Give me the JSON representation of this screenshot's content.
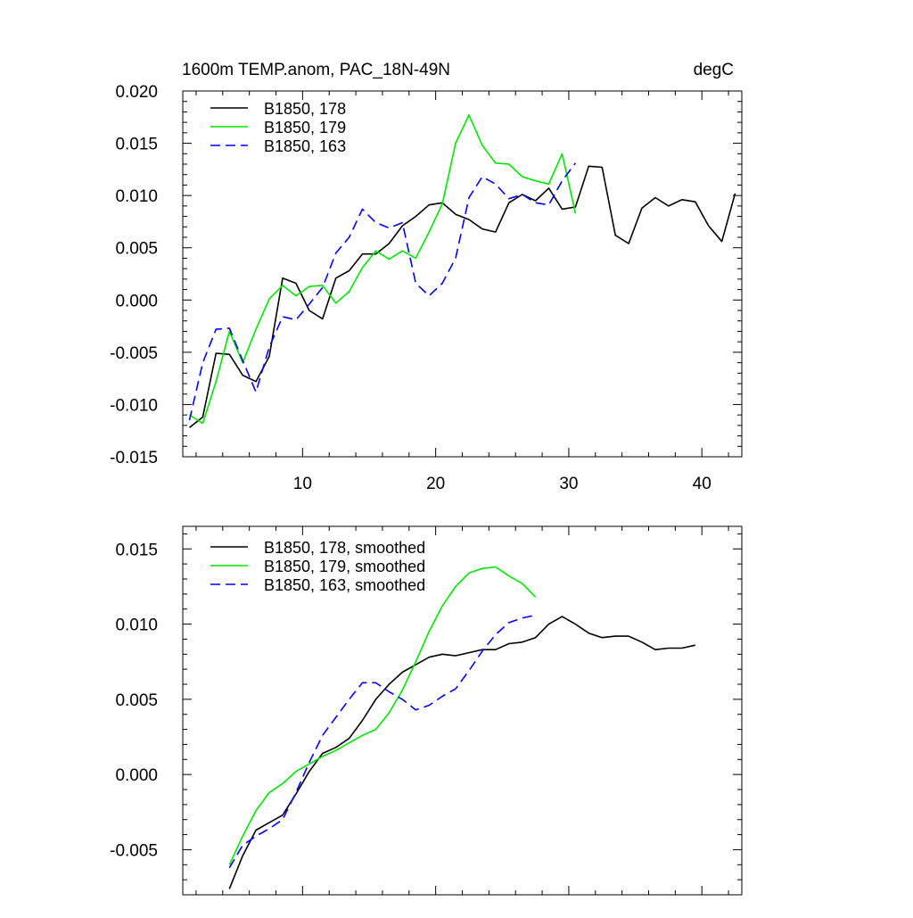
{
  "chart_data": [
    {
      "type": "line",
      "title": "1600m TEMP.anom, PAC_18N-49N",
      "units": "degC",
      "xlabel": "",
      "ylabel": "",
      "xlim": [
        1,
        43
      ],
      "ylim": [
        -0.015,
        0.02
      ],
      "yticks": [
        -0.015,
        -0.01,
        -0.005,
        0.0,
        0.005,
        0.01,
        0.015,
        0.02
      ],
      "ytick_labels": [
        "-0.015",
        "-0.010",
        "-0.005",
        "0.000",
        "0.005",
        "0.010",
        "0.015",
        "0.020"
      ],
      "xticks": [
        10,
        20,
        30,
        40
      ],
      "xtick_labels": [
        "10",
        "20",
        "30",
        "40"
      ],
      "legend_position": "top-left",
      "series": [
        {
          "name": "B1850, 178",
          "color": "#000000",
          "dash": "solid",
          "x": [
            1.5,
            2.5,
            3.5,
            4.5,
            5.5,
            6.5,
            7.5,
            8.5,
            9.5,
            10.5,
            11.5,
            12.5,
            13.5,
            14.5,
            15.5,
            16.5,
            17.5,
            18.5,
            19.5,
            20.5,
            21.5,
            22.5,
            23.5,
            24.5,
            25.5,
            26.5,
            27.5,
            28.5,
            29.5,
            30.5,
            31.5,
            32.5,
            33.5,
            34.5,
            35.5,
            36.5,
            37.5,
            38.5,
            39.5,
            40.5,
            41.5,
            42.5
          ],
          "y": [
            -0.0122,
            -0.0112,
            -0.0051,
            -0.0052,
            -0.0072,
            -0.0078,
            -0.0054,
            0.0021,
            0.0016,
            -0.001,
            -0.0018,
            0.0021,
            0.0028,
            0.0044,
            0.0044,
            0.0054,
            0.0071,
            0.008,
            0.0091,
            0.0093,
            0.0082,
            0.0077,
            0.0068,
            0.0065,
            0.0093,
            0.0101,
            0.0095,
            0.0107,
            0.0087,
            0.0089,
            0.0128,
            0.0127,
            0.0062,
            0.0054,
            0.0088,
            0.0098,
            0.009,
            0.0096,
            0.0094,
            0.0071,
            0.0056,
            0.0102
          ]
        },
        {
          "name": "B1850, 179",
          "color": "#00e600",
          "dash": "solid",
          "x": [
            1.5,
            2.5,
            3.5,
            4.5,
            5.5,
            6.5,
            7.5,
            8.5,
            9.5,
            10.5,
            11.5,
            12.5,
            13.5,
            14.5,
            15.5,
            16.5,
            17.5,
            18.5,
            19.5,
            20.5,
            21.5,
            22.5,
            23.5,
            24.5,
            25.5,
            26.5,
            27.5,
            28.5,
            29.5,
            30.5
          ],
          "y": [
            -0.011,
            -0.0118,
            -0.0078,
            -0.003,
            -0.006,
            -0.0028,
            0.0001,
            0.0014,
            0.0004,
            0.0013,
            0.0014,
            -0.0003,
            0.0008,
            0.0031,
            0.0047,
            0.0039,
            0.0047,
            0.004,
            0.0065,
            0.0092,
            0.015,
            0.0177,
            0.0148,
            0.0131,
            0.013,
            0.0118,
            0.0114,
            0.0111,
            0.014,
            0.0083
          ]
        },
        {
          "name": "B1850, 163",
          "color": "#0000ff",
          "dash": "dashed",
          "x": [
            1.5,
            2.5,
            3.5,
            4.5,
            5.5,
            6.5,
            7.5,
            8.5,
            9.5,
            10.5,
            11.5,
            12.5,
            13.5,
            14.5,
            15.5,
            16.5,
            17.5,
            18.5,
            19.5,
            20.5,
            21.5,
            22.5,
            23.5,
            24.5,
            25.5,
            26.5,
            27.5,
            28.5,
            29.5,
            30.5
          ],
          "y": [
            -0.0115,
            -0.006,
            -0.0028,
            -0.0027,
            -0.0058,
            -0.0088,
            -0.0045,
            -0.0016,
            -0.0019,
            -0.0004,
            0.0012,
            0.0045,
            0.006,
            0.0087,
            0.0074,
            0.0069,
            0.0074,
            0.0016,
            0.0004,
            0.0016,
            0.004,
            0.0098,
            0.0118,
            0.0111,
            0.0097,
            0.0101,
            0.0093,
            0.0091,
            0.0114,
            0.0131
          ]
        }
      ]
    },
    {
      "type": "line",
      "title": "",
      "xlabel": "",
      "ylabel": "",
      "xlim": [
        1,
        43
      ],
      "ylim": [
        -0.008,
        0.0165
      ],
      "yticks": [
        -0.005,
        0.0,
        0.005,
        0.01,
        0.015
      ],
      "ytick_labels": [
        "-0.005",
        "0.000",
        "0.005",
        "0.010",
        "0.015"
      ],
      "xticks": [
        10,
        20,
        30,
        40
      ],
      "xtick_labels": [],
      "legend_position": "top-left",
      "series": [
        {
          "name": "B1850, 178, smoothed",
          "color": "#000000",
          "dash": "solid",
          "x": [
            4.5,
            5.5,
            6.5,
            7.5,
            8.5,
            9.5,
            10.5,
            11.5,
            12.5,
            13.5,
            14.5,
            15.5,
            16.5,
            17.5,
            18.5,
            19.5,
            20.5,
            21.5,
            22.5,
            23.5,
            24.5,
            25.5,
            26.5,
            27.5,
            28.5,
            29.5,
            30.5,
            31.5,
            32.5,
            33.5,
            34.5,
            35.5,
            36.5,
            37.5,
            38.5,
            39.5
          ],
          "y": [
            -0.0076,
            -0.0054,
            -0.0037,
            -0.0032,
            -0.0027,
            -0.0013,
            0.0002,
            0.0014,
            0.0018,
            0.0024,
            0.0036,
            0.005,
            0.006,
            0.0068,
            0.0073,
            0.0078,
            0.008,
            0.0079,
            0.0081,
            0.0083,
            0.0083,
            0.0087,
            0.0088,
            0.0091,
            0.01,
            0.0105,
            0.01,
            0.0094,
            0.0091,
            0.0092,
            0.0092,
            0.0088,
            0.0083,
            0.0084,
            0.0084,
            0.0086
          ]
        },
        {
          "name": "B1850, 179, smoothed",
          "color": "#00e600",
          "dash": "solid",
          "x": [
            4.5,
            5.5,
            6.5,
            7.5,
            8.5,
            9.5,
            10.5,
            11.5,
            12.5,
            13.5,
            14.5,
            15.5,
            16.5,
            17.5,
            18.5,
            19.5,
            20.5,
            21.5,
            22.5,
            23.5,
            24.5,
            25.5,
            26.5,
            27.5
          ],
          "y": [
            -0.006,
            -0.0041,
            -0.0024,
            -0.0012,
            -0.0006,
            0.0002,
            0.0007,
            0.0012,
            0.0016,
            0.0021,
            0.0026,
            0.003,
            0.0041,
            0.0056,
            0.0075,
            0.0095,
            0.0112,
            0.0125,
            0.0134,
            0.0137,
            0.0138,
            0.0132,
            0.0127,
            0.0118
          ]
        },
        {
          "name": "B1850, 163, smoothed",
          "color": "#0000ff",
          "dash": "dashed",
          "x": [
            4.5,
            5.5,
            6.5,
            7.5,
            8.5,
            9.5,
            10.5,
            11.5,
            12.5,
            13.5,
            14.5,
            15.5,
            16.5,
            17.5,
            18.5,
            19.5,
            20.5,
            21.5,
            22.5,
            23.5,
            24.5,
            25.5,
            26.5,
            27.5
          ],
          "y": [
            -0.0062,
            -0.0047,
            -0.0041,
            -0.0036,
            -0.003,
            -0.0012,
            0.0008,
            0.0026,
            0.0038,
            0.005,
            0.0061,
            0.0061,
            0.0055,
            0.005,
            0.0043,
            0.0046,
            0.0052,
            0.0057,
            0.0069,
            0.0082,
            0.0093,
            0.0101,
            0.0104,
            0.0106
          ]
        }
      ]
    }
  ]
}
